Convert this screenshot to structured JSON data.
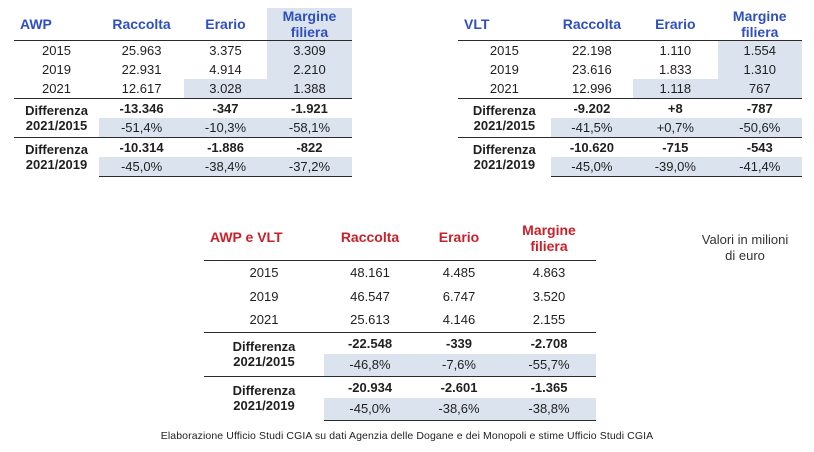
{
  "tables": {
    "awp": {
      "title": "AWP",
      "headers": [
        "Raccolta",
        "Erario",
        "Margine filiera"
      ],
      "rows": [
        {
          "year": "2015",
          "values": [
            "25.963",
            "3.375",
            "3.309"
          ]
        },
        {
          "year": "2019",
          "values": [
            "22.931",
            "4.914",
            "2.210"
          ]
        },
        {
          "year": "2021",
          "values": [
            "12.617",
            "3.028",
            "1.388"
          ]
        }
      ],
      "diffs": [
        {
          "label1": "Differenza",
          "label2": "2021/2015",
          "abs": [
            "-13.346",
            "-347",
            "-1.921"
          ],
          "pct": [
            "-51,4%",
            "-10,3%",
            "-58,1%"
          ]
        },
        {
          "label1": "Differenza",
          "label2": "2021/2019",
          "abs": [
            "-10.314",
            "-1.886",
            "-822"
          ],
          "pct": [
            "-45,0%",
            "-38,4%",
            "-37,2%"
          ]
        }
      ]
    },
    "vlt": {
      "title": "VLT",
      "headers": [
        "Raccolta",
        "Erario",
        "Margine filiera"
      ],
      "rows": [
        {
          "year": "2015",
          "values": [
            "22.198",
            "1.110",
            "1.554"
          ]
        },
        {
          "year": "2019",
          "values": [
            "23.616",
            "1.833",
            "1.310"
          ]
        },
        {
          "year": "2021",
          "values": [
            "12.996",
            "1.118",
            "767"
          ]
        }
      ],
      "diffs": [
        {
          "label1": "Differenza",
          "label2": "2021/2015",
          "abs": [
            "-9.202",
            "+8",
            "-787"
          ],
          "pct": [
            "-41,5%",
            "+0,7%",
            "-50,6%"
          ]
        },
        {
          "label1": "Differenza",
          "label2": "2021/2019",
          "abs": [
            "-10.620",
            "-715",
            "-543"
          ],
          "pct": [
            "-45,0%",
            "-39,0%",
            "-41,4%"
          ]
        }
      ]
    },
    "total": {
      "title": "AWP e VLT",
      "headers": [
        "Raccolta",
        "Erario",
        "Margine filiera"
      ],
      "rows": [
        {
          "year": "2015",
          "values": [
            "48.161",
            "4.485",
            "4.863"
          ]
        },
        {
          "year": "2019",
          "values": [
            "46.547",
            "6.747",
            "3.520"
          ]
        },
        {
          "year": "2021",
          "values": [
            "25.613",
            "4.146",
            "2.155"
          ]
        }
      ],
      "diffs": [
        {
          "label1": "Differenza",
          "label2": "2021/2015",
          "abs": [
            "-22.548",
            "-339",
            "-2.708"
          ],
          "pct": [
            "-46,8%",
            "-7,6%",
            "-55,7%"
          ]
        },
        {
          "label1": "Differenza",
          "label2": "2021/2019",
          "abs": [
            "-20.934",
            "-2.601",
            "-1.365"
          ],
          "pct": [
            "-45,0%",
            "-38,6%",
            "-38,8%"
          ]
        }
      ]
    }
  },
  "note": "Valori in milioni di euro",
  "source": "Elaborazione Ufficio Studi CGIA su dati Agenzia delle Dogane e dei Monopoli e stime Ufficio Studi CGIA",
  "colors": {
    "header_blue": "#2f4fbf",
    "header_red": "#c8212a",
    "shade": "#dbe3ef"
  }
}
